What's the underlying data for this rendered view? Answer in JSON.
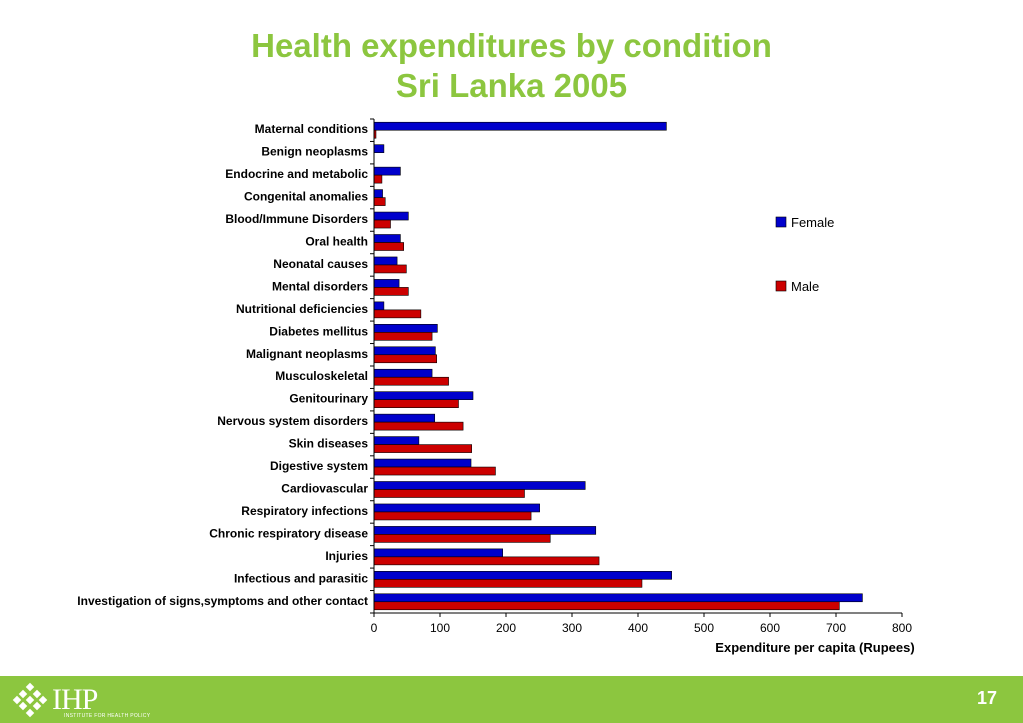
{
  "slide": {
    "title_line1": "Health expenditures by condition",
    "title_line2": "Sri Lanka 2005",
    "page_number": "17"
  },
  "logo": {
    "text": "IHP",
    "subtitle": "INSTITUTE FOR HEALTH POLICY"
  },
  "colors": {
    "female": "#0000cc",
    "male": "#cc0000",
    "title": "#8cc63f",
    "footer": "#8cc63f"
  },
  "chart_data": {
    "type": "bar",
    "orientation": "horizontal",
    "title": "",
    "xlabel": "Expenditure per capita (Rupees)",
    "ylabel": "",
    "xlim": [
      0,
      800
    ],
    "xticks": [
      0,
      100,
      200,
      300,
      400,
      500,
      600,
      700,
      800
    ],
    "grid": false,
    "legend": "right",
    "categories": [
      "Maternal conditions",
      "Benign neoplasms",
      "Endocrine and metabolic",
      "Congenital anomalies",
      "Blood/Immune Disorders",
      "Oral health",
      "Neonatal causes",
      "Mental disorders",
      "Nutritional deficiencies",
      "Diabetes mellitus",
      "Malignant neoplasms",
      "Musculoskeletal",
      "Genitourinary",
      "Nervous system disorders",
      "Skin diseases",
      "Digestive system",
      "Cardiovascular",
      "Respiratory infections",
      "Chronic respiratory disease",
      "Injuries",
      "Infectious and parasitic",
      "Investigation of signs,symptoms and other contact"
    ],
    "series": [
      {
        "name": "Female",
        "values": [
          443,
          15,
          40,
          13,
          52,
          40,
          35,
          38,
          15,
          96,
          93,
          88,
          150,
          92,
          68,
          147,
          320,
          251,
          336,
          195,
          451,
          740
        ]
      },
      {
        "name": "Male",
        "values": [
          3,
          0,
          12,
          17,
          25,
          45,
          49,
          52,
          71,
          88,
          95,
          113,
          128,
          135,
          148,
          184,
          228,
          238,
          267,
          341,
          406,
          705
        ]
      }
    ]
  }
}
